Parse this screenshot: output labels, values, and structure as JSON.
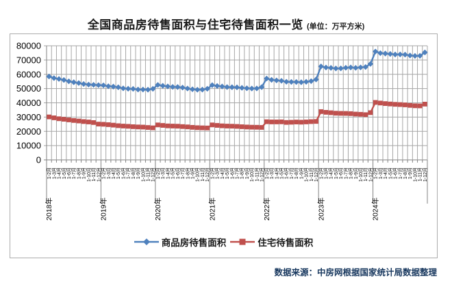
{
  "title": {
    "main": "全国商品房待售面积与住宅待售面积一览",
    "unit": "(单位：万平方米)"
  },
  "source_note": "数据来源：中房网根据国家统计局数据整理",
  "colors": {
    "series_commercial": "#4F81BD",
    "series_residential": "#C0504D",
    "gridline": "#A6A6A6",
    "axis": "#808080",
    "frame_border": "#ABABAB",
    "source_text": "#17375E",
    "label_text": "#000000"
  },
  "legend": [
    {
      "name": "商品房待售面积",
      "color": "#4F81BD",
      "marker": "diamond"
    },
    {
      "name": "住宅待售面积",
      "color": "#C0504D",
      "marker": "square"
    }
  ],
  "chart_data": {
    "type": "line",
    "title": "全国商品房待售面积与住宅待售面积一览",
    "unit": "万平方米",
    "ylabel": "",
    "xlabel": "",
    "ylim": [
      0,
      80000
    ],
    "ytick_step": 10000,
    "grid": true,
    "legend_position": "bottom",
    "years": [
      "2018年",
      "2019年",
      "2020年",
      "2021年",
      "2022年",
      "2023年",
      "2024年"
    ],
    "month_labels_per_year": [
      "1-2月",
      "1-3月",
      "1-4月",
      "1-5月",
      "1-6月",
      "1-7月",
      "1-8月",
      "1-9月",
      "1-10月",
      "1-11月",
      "1-12月"
    ],
    "series": [
      {
        "name": "商品房待售面积",
        "color": "#4F81BD",
        "marker": "diamond",
        "values": [
          58468,
          57329,
          56731,
          56010,
          55083,
          54428,
          53873,
          53191,
          52789,
          52627,
          52414,
          52251,
          51646,
          51380,
          50928,
          50162,
          49876,
          49784,
          49346,
          49323,
          49221,
          49821,
          52563,
          51968,
          51512,
          51184,
          51083,
          50691,
          50052,
          49497,
          49193,
          49287,
          49850,
          52425,
          51835,
          51477,
          51057,
          50955,
          50864,
          50487,
          50206,
          50049,
          50092,
          51023,
          57026,
          56113,
          55735,
          55433,
          54784,
          54655,
          54605,
          54433,
          54734,
          55203,
          56366,
          65528,
          64770,
          64487,
          64120,
          64159,
          64564,
          64795,
          64537,
          64835,
          65118,
          67295,
          75969,
          74833,
          74553,
          74256,
          73894,
          73926,
          73779,
          73191,
          72909,
          72967,
          75327
        ]
      },
      {
        "name": "住宅待售面积",
        "color": "#C0504D",
        "marker": "square",
        "values": [
          30129,
          29483,
          28844,
          28480,
          28026,
          27610,
          27270,
          26869,
          26573,
          26168,
          25091,
          24953,
          24681,
          24360,
          23974,
          23714,
          23531,
          23274,
          23091,
          22992,
          22721,
          22473,
          24516,
          24167,
          23832,
          23708,
          23606,
          23354,
          23128,
          22814,
          22577,
          22466,
          22379,
          24519,
          24180,
          23878,
          23699,
          23617,
          23469,
          23246,
          23045,
          22916,
          22864,
          22761,
          26752,
          26606,
          26611,
          26673,
          26248,
          26379,
          26544,
          26422,
          26606,
          26821,
          26947,
          33852,
          33334,
          33064,
          32717,
          32611,
          32563,
          32424,
          32107,
          31950,
          31713,
          33119,
          40293,
          39851,
          39466,
          39194,
          38940,
          38783,
          38564,
          38193,
          37934,
          37854,
          39088
        ]
      }
    ]
  }
}
